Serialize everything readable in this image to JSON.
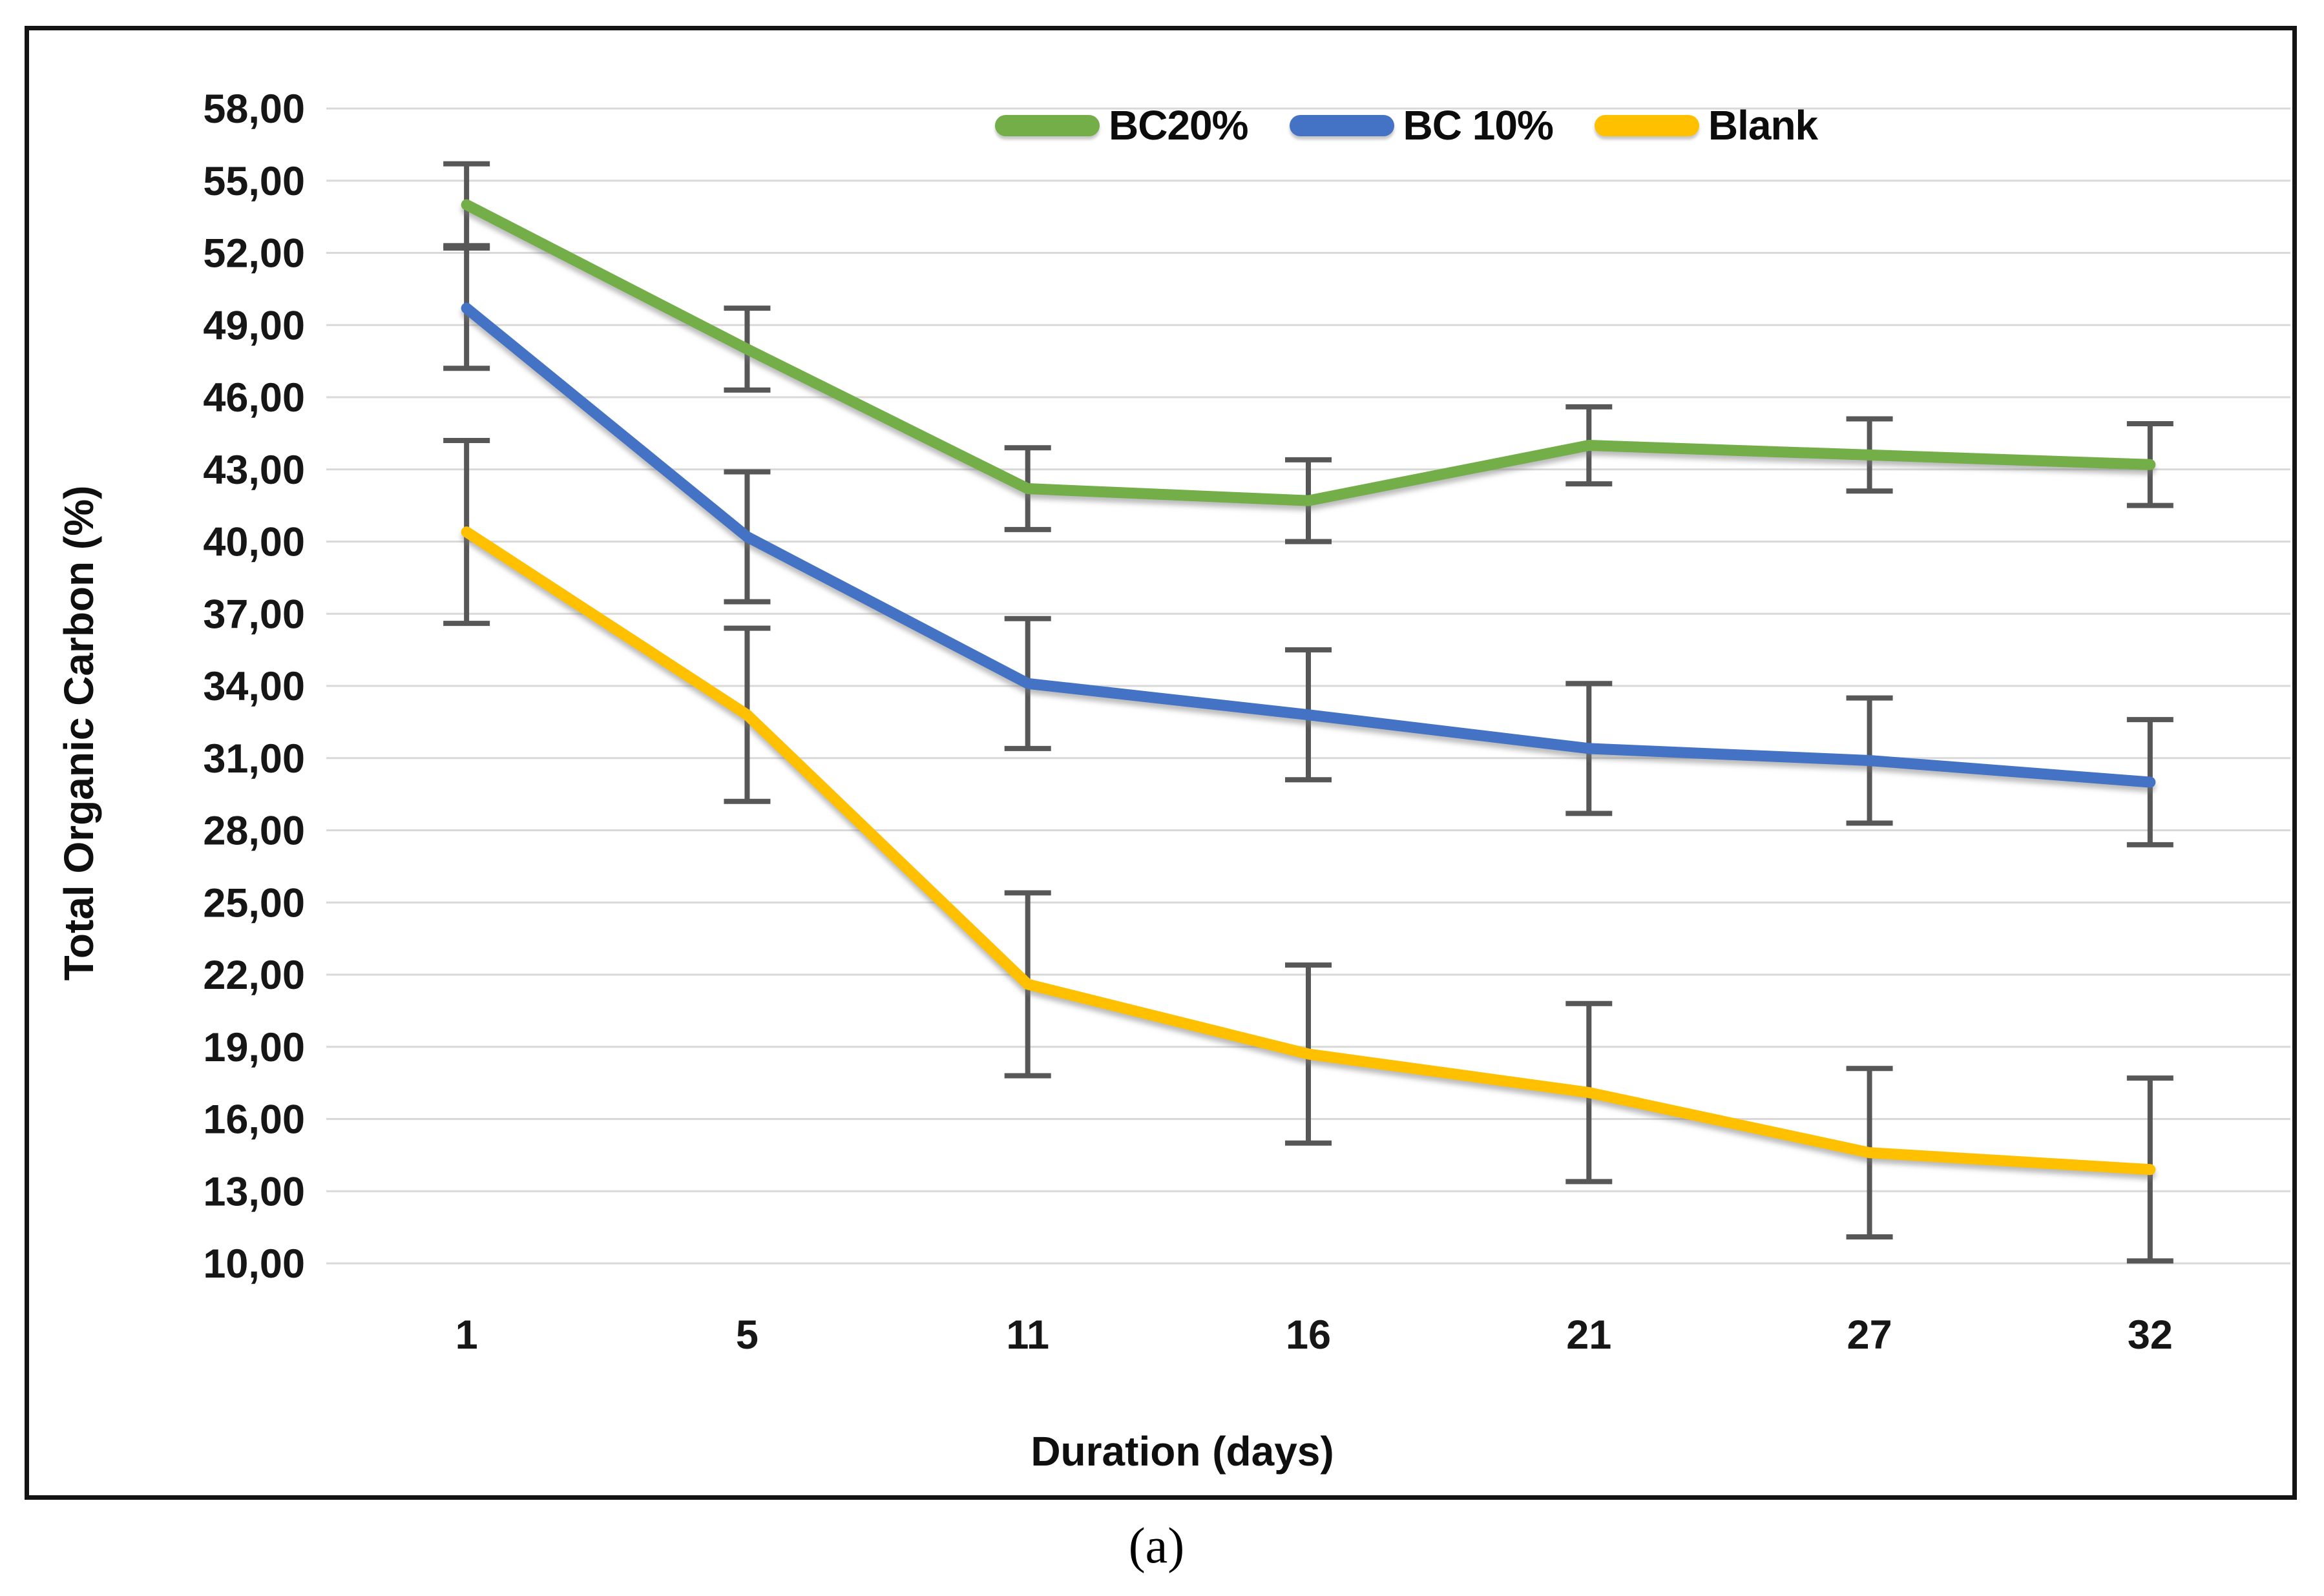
{
  "chart_data": {
    "type": "line",
    "title": "",
    "xlabel": "Duration (days)",
    "ylabel": "Total Organic Carbon (%)",
    "categories": [
      "1",
      "5",
      "11",
      "16",
      "21",
      "27",
      "32"
    ],
    "x_values_days": [
      1,
      5,
      11,
      16,
      21,
      27,
      32
    ],
    "ylim": [
      10,
      58
    ],
    "ytick_step": 3,
    "ytick_labels": [
      "58,00",
      "55,00",
      "52,00",
      "49,00",
      "46,00",
      "43,00",
      "40,00",
      "37,00",
      "34,00",
      "31,00",
      "28,00",
      "25,00",
      "22,00",
      "19,00",
      "16,00",
      "13,00",
      "10,00"
    ],
    "grid": true,
    "legend_position": "top-center",
    "series": [
      {
        "name": "BC20%",
        "color": "#73AE49",
        "values": [
          54.0,
          48.0,
          42.2,
          41.7,
          44.0,
          43.6,
          43.2
        ],
        "errors": [
          1.7,
          1.7,
          1.7,
          1.7,
          1.6,
          1.5,
          1.7
        ]
      },
      {
        "name": "BC 10%",
        "color": "#4472C4",
        "values": [
          49.7,
          40.2,
          34.1,
          32.8,
          31.4,
          30.9,
          30.0
        ],
        "errors": [
          2.5,
          2.7,
          2.7,
          2.7,
          2.7,
          2.6,
          2.6
        ]
      },
      {
        "name": "Blank",
        "color": "#FFC000",
        "values": [
          40.4,
          32.8,
          21.6,
          18.7,
          17.1,
          14.6,
          13.9
        ],
        "errors": [
          3.8,
          3.6,
          3.8,
          3.7,
          3.7,
          3.5,
          3.8
        ]
      }
    ],
    "error_bar_color": "#575757",
    "gridline_color": "#D9D9D9",
    "caption": "(a)"
  }
}
